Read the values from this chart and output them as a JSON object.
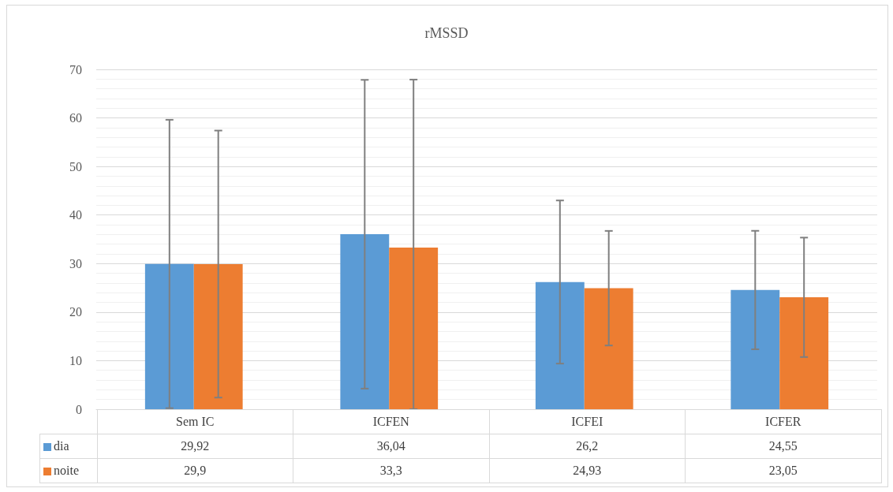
{
  "chart_data": {
    "type": "bar",
    "title": "rMSSD",
    "categories": [
      "Sem IC",
      "ICFEN",
      "ICFEI",
      "ICFER"
    ],
    "series": [
      {
        "name": "dia",
        "color": "#5b9bd5",
        "values": [
          29.92,
          36.04,
          26.2,
          24.55
        ],
        "errors": [
          29.7,
          31.8,
          16.8,
          12.2
        ],
        "value_labels": [
          "29,92",
          "36,04",
          "26,2",
          "24,55"
        ]
      },
      {
        "name": "noite",
        "color": "#ed7d31",
        "values": [
          29.9,
          33.3,
          24.93,
          23.05
        ],
        "errors": [
          27.5,
          [
            0,
            67.9
          ],
          11.8,
          12.3
        ],
        "value_labels": [
          "29,9",
          "33,3",
          "24,93",
          "23,05"
        ]
      }
    ],
    "ylim": [
      0,
      70
    ],
    "yticks": [
      0,
      10,
      20,
      30,
      40,
      50,
      60,
      70
    ],
    "grid": "y",
    "legend": "bottom"
  }
}
